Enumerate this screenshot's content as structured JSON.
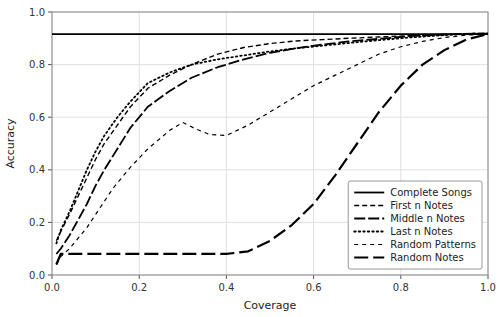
{
  "chart_data": {
    "type": "line",
    "xlabel": "Coverage",
    "ylabel": "Accuracy",
    "xlim": [
      0.0,
      1.0
    ],
    "ylim": [
      0.0,
      1.0
    ],
    "xticks": [
      {
        "value": 0.0,
        "label": "0.0"
      },
      0.2,
      0.4,
      0.6,
      0.8,
      {
        "value": 1.0,
        "label": "1.0"
      }
    ],
    "yticks": [
      {
        "value": 0.0,
        "label": "0.0"
      },
      0.2,
      0.4,
      0.6,
      0.8,
      {
        "value": 1.0,
        "label": "1.0"
      }
    ],
    "grid": true,
    "legend": "lower right",
    "series": [
      {
        "name": "Complete Songs",
        "color": "#000000",
        "line_style": "solid",
        "x": [
          0.0,
          1.0
        ],
        "values": [
          0.916,
          0.916
        ]
      },
      {
        "name": "First n Notes",
        "color": "#000000",
        "line_style": "short-dash",
        "x": [
          0.01,
          0.02,
          0.04,
          0.06,
          0.08,
          0.1,
          0.12,
          0.15,
          0.18,
          0.22,
          0.27,
          0.32,
          0.38,
          0.44,
          0.5,
          0.56,
          0.62,
          0.68,
          0.75,
          0.82,
          0.88,
          0.93,
          0.97,
          1.0
        ],
        "values": [
          0.13,
          0.165,
          0.23,
          0.3,
          0.37,
          0.44,
          0.5,
          0.57,
          0.64,
          0.71,
          0.76,
          0.8,
          0.84,
          0.865,
          0.88,
          0.89,
          0.895,
          0.9,
          0.905,
          0.91,
          0.913,
          0.916,
          0.918,
          0.918
        ]
      },
      {
        "name": "Middle n Notes",
        "color": "#000000",
        "line_style": "long-dash",
        "x": [
          0.01,
          0.02,
          0.04,
          0.06,
          0.08,
          0.1,
          0.12,
          0.15,
          0.18,
          0.22,
          0.27,
          0.32,
          0.38,
          0.44,
          0.5,
          0.56,
          0.62,
          0.68,
          0.75,
          0.82,
          0.88,
          0.93,
          0.97,
          1.0
        ],
        "values": [
          0.08,
          0.1,
          0.15,
          0.21,
          0.27,
          0.34,
          0.4,
          0.48,
          0.56,
          0.64,
          0.7,
          0.75,
          0.79,
          0.82,
          0.845,
          0.862,
          0.876,
          0.888,
          0.898,
          0.908,
          0.913,
          0.916,
          0.918,
          0.918
        ]
      },
      {
        "name": "Last n Notes",
        "color": "#000000",
        "line_style": "dotted",
        "x": [
          0.01,
          0.02,
          0.04,
          0.06,
          0.08,
          0.1,
          0.12,
          0.15,
          0.18,
          0.22,
          0.27,
          0.32,
          0.38,
          0.44,
          0.5,
          0.56,
          0.62,
          0.68,
          0.75,
          0.82,
          0.88,
          0.93,
          0.97,
          1.0
        ],
        "values": [
          0.12,
          0.17,
          0.24,
          0.32,
          0.4,
          0.47,
          0.53,
          0.6,
          0.66,
          0.73,
          0.77,
          0.8,
          0.82,
          0.835,
          0.85,
          0.862,
          0.872,
          0.882,
          0.893,
          0.903,
          0.91,
          0.915,
          0.918,
          0.918
        ]
      },
      {
        "name": "Random Patterns",
        "color": "#000000",
        "line_style": "medium-dash",
        "x": [
          0.01,
          0.02,
          0.04,
          0.06,
          0.08,
          0.1,
          0.14,
          0.18,
          0.22,
          0.27,
          0.3,
          0.33,
          0.36,
          0.4,
          0.45,
          0.5,
          0.55,
          0.6,
          0.65,
          0.7,
          0.75,
          0.8,
          0.85,
          0.9,
          0.95,
          1.0
        ],
        "values": [
          0.04,
          0.07,
          0.1,
          0.14,
          0.18,
          0.23,
          0.33,
          0.41,
          0.48,
          0.55,
          0.58,
          0.555,
          0.535,
          0.53,
          0.57,
          0.62,
          0.67,
          0.72,
          0.76,
          0.8,
          0.84,
          0.868,
          0.888,
          0.903,
          0.912,
          0.916
        ]
      },
      {
        "name": "Random Notes",
        "color": "#000000",
        "line_style": "very-long-dash",
        "x": [
          0.01,
          0.02,
          0.05,
          0.1,
          0.15,
          0.2,
          0.25,
          0.3,
          0.35,
          0.4,
          0.45,
          0.5,
          0.55,
          0.6,
          0.65,
          0.7,
          0.75,
          0.8,
          0.85,
          0.9,
          0.95,
          1.0
        ],
        "values": [
          0.04,
          0.08,
          0.08,
          0.08,
          0.08,
          0.08,
          0.08,
          0.08,
          0.08,
          0.08,
          0.09,
          0.13,
          0.19,
          0.27,
          0.38,
          0.5,
          0.62,
          0.72,
          0.8,
          0.855,
          0.895,
          0.916
        ]
      }
    ]
  }
}
